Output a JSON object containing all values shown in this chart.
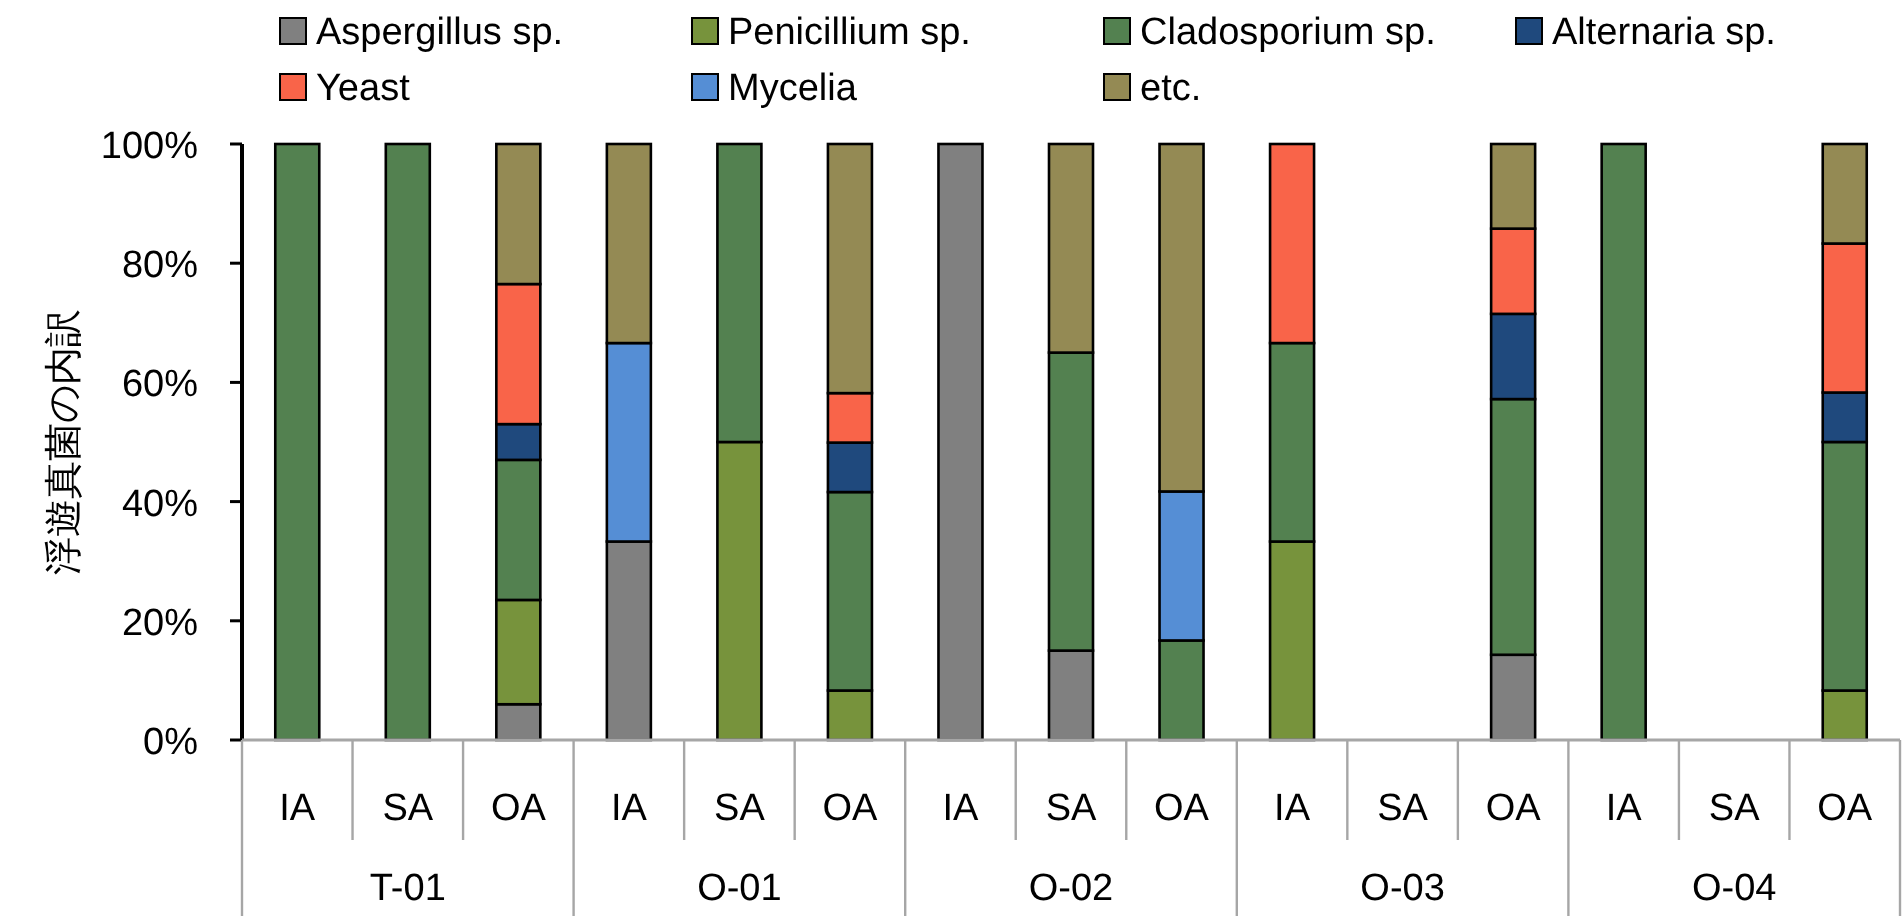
{
  "chart_data": {
    "type": "bar",
    "stacked": true,
    "ylabel": "浮遊真菌の内訳",
    "categories": [
      "IA",
      "SA",
      "OA",
      "IA",
      "SA",
      "OA",
      "IA",
      "SA",
      "OA",
      "IA",
      "SA",
      "OA",
      "IA",
      "SA",
      "OA"
    ],
    "annotations": [
      "T-01",
      "O-01",
      "O-02",
      "O-03",
      "O-04"
    ],
    "series": [
      {
        "name": "Aspergillus sp.",
        "color": "#808080",
        "values": [
          null,
          null,
          6,
          33.3,
          null,
          null,
          100,
          15,
          null,
          null,
          null,
          14.3,
          null,
          null,
          null
        ]
      },
      {
        "name": "Penicillium sp.",
        "color": "#77933c",
        "values": [
          null,
          null,
          17.5,
          null,
          50,
          8.3,
          null,
          null,
          null,
          33.3,
          null,
          null,
          null,
          null,
          8.3
        ]
      },
      {
        "name": "Cladosporium sp.",
        "color": "#538150",
        "values": [
          100,
          100,
          23.5,
          null,
          50,
          33.3,
          null,
          50,
          16.7,
          33.3,
          null,
          42.9,
          100,
          null,
          41.7
        ]
      },
      {
        "name": "Alternaria sp.",
        "color": "#1f497d",
        "values": [
          null,
          null,
          6,
          null,
          null,
          8.3,
          null,
          null,
          null,
          null,
          null,
          14.3,
          null,
          null,
          8.3
        ]
      },
      {
        "name": "Yeast",
        "color": "#f96449",
        "values": [
          null,
          null,
          23.5,
          null,
          null,
          8.3,
          null,
          null,
          null,
          33.4,
          null,
          14.3,
          null,
          null,
          25
        ]
      },
      {
        "name": "Mycelia",
        "color": "#558ed5",
        "values": [
          null,
          null,
          null,
          33.3,
          null,
          null,
          null,
          null,
          25,
          null,
          null,
          null,
          null,
          null,
          null
        ]
      },
      {
        "name": "etc.",
        "color": "#948a54",
        "values": [
          null,
          null,
          23.5,
          33.4,
          null,
          41.8,
          null,
          35,
          58.3,
          null,
          null,
          14.2,
          null,
          null,
          16.7
        ]
      }
    ],
    "ylim": [
      0,
      100
    ],
    "yticks": [
      {
        "value": 0,
        "label": "0%"
      },
      {
        "value": 20,
        "label": "20%"
      },
      {
        "value": 40,
        "label": "40%"
      },
      {
        "value": 60,
        "label": "60%"
      },
      {
        "value": 80,
        "label": "80%"
      },
      {
        "value": 100,
        "label": "100%"
      }
    ],
    "grid": false,
    "legend": "top"
  }
}
